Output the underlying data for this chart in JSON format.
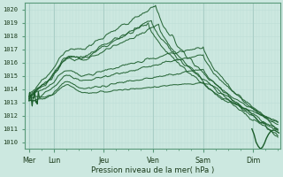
{
  "xlabel": "Pression niveau de la mer( hPa )",
  "bg_color": "#cce8e0",
  "grid_major_color": "#aacfc7",
  "grid_minor_color": "#bdddd6",
  "line_color": "#1a5c2a",
  "spine_color": "#5a9a7a",
  "ylim": [
    1009.5,
    1020.5
  ],
  "yticks": [
    1010,
    1011,
    1012,
    1013,
    1014,
    1015,
    1016,
    1017,
    1018,
    1019,
    1020
  ],
  "day_labels": [
    "Mer",
    "Lun",
    "Jeu",
    "Ven",
    "Sam",
    "Dim"
  ],
  "day_x": [
    0,
    24,
    72,
    120,
    168,
    216
  ],
  "xlim": [
    -4,
    242
  ],
  "n_hours": 240,
  "seed": 42
}
